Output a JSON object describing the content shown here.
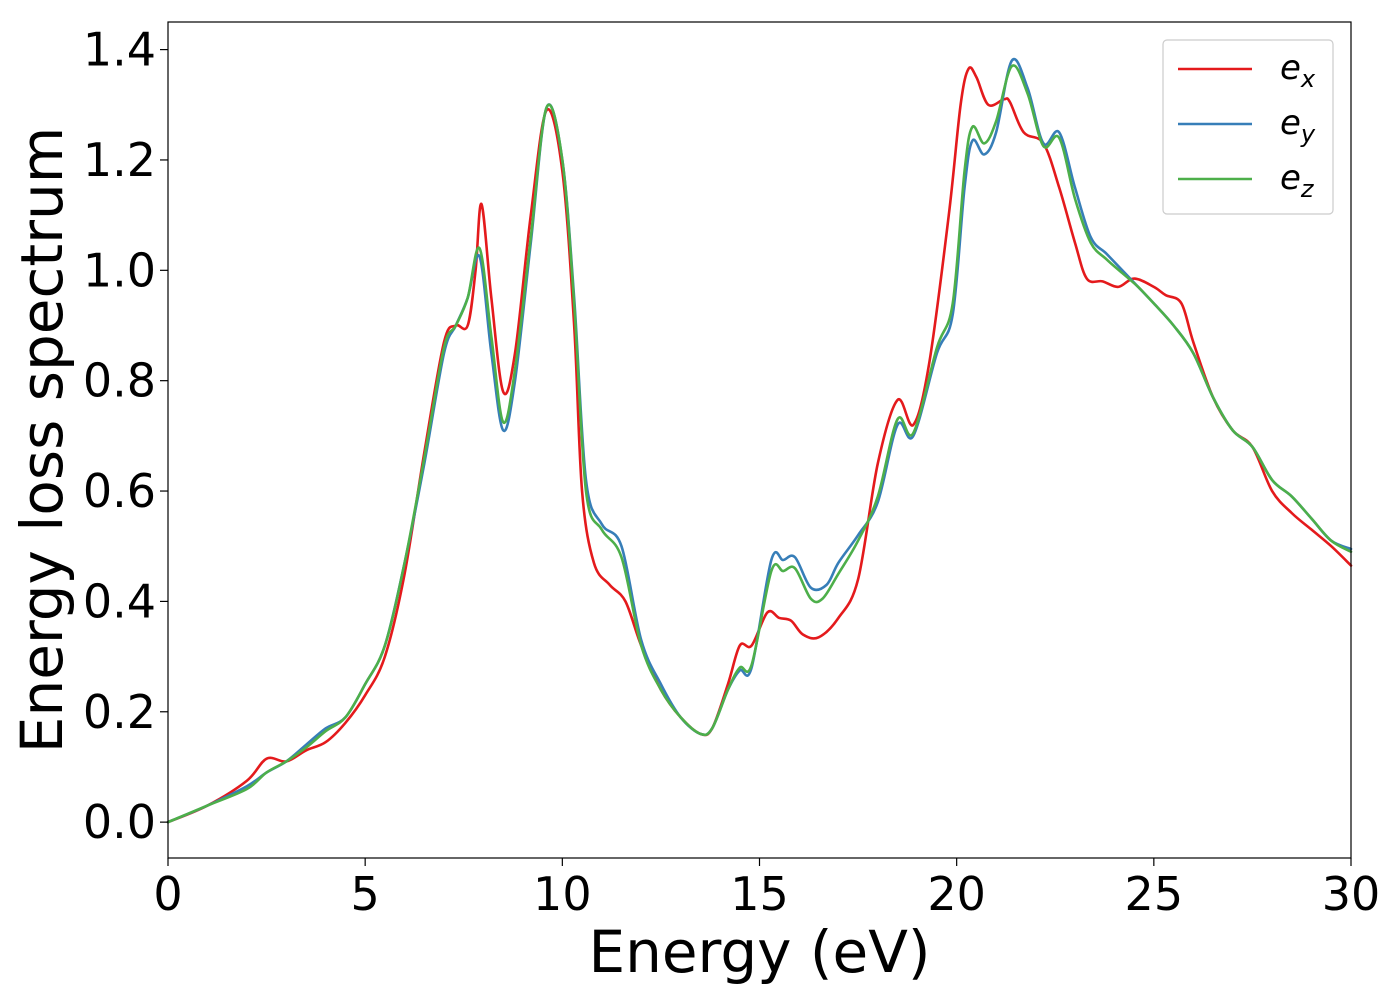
{
  "chart_data": {
    "type": "line",
    "title": "",
    "xlabel": "Energy (eV)",
    "ylabel": "Energy loss spectrum",
    "xlim": [
      0,
      30
    ],
    "ylim": [
      -0.065,
      1.45
    ],
    "xticks": [
      0,
      5,
      10,
      15,
      20,
      25,
      30
    ],
    "xtick_labels": [
      "0",
      "5",
      "10",
      "15",
      "20",
      "25",
      "30"
    ],
    "yticks": [
      0.0,
      0.2,
      0.4,
      0.6,
      0.8,
      1.0,
      1.2,
      1.4
    ],
    "ytick_labels": [
      "0.0",
      "0.2",
      "0.4",
      "0.6",
      "0.8",
      "1.0",
      "1.2",
      "1.4"
    ],
    "grid": false,
    "legend_position": "top-right",
    "series": [
      {
        "name": "e_x",
        "label_base": "e",
        "label_sub": "x",
        "color": "#e41a1c",
        "points": [
          [
            0,
            0
          ],
          [
            1,
            0.03
          ],
          [
            2,
            0.075
          ],
          [
            2.5,
            0.115
          ],
          [
            3,
            0.11
          ],
          [
            3.5,
            0.13
          ],
          [
            4,
            0.145
          ],
          [
            4.5,
            0.18
          ],
          [
            5,
            0.23
          ],
          [
            5.5,
            0.3
          ],
          [
            6,
            0.45
          ],
          [
            6.5,
            0.67
          ],
          [
            7,
            0.87
          ],
          [
            7.3,
            0.9
          ],
          [
            7.6,
            0.9
          ],
          [
            7.8,
            1.0
          ],
          [
            7.95,
            1.12
          ],
          [
            8.2,
            0.95
          ],
          [
            8.5,
            0.78
          ],
          [
            8.8,
            0.85
          ],
          [
            9.2,
            1.1
          ],
          [
            9.6,
            1.29
          ],
          [
            10,
            1.18
          ],
          [
            10.3,
            0.9
          ],
          [
            10.5,
            0.6
          ],
          [
            10.8,
            0.47
          ],
          [
            11.2,
            0.43
          ],
          [
            11.6,
            0.4
          ],
          [
            12,
            0.32
          ],
          [
            12.5,
            0.24
          ],
          [
            13,
            0.19
          ],
          [
            13.5,
            0.16
          ],
          [
            13.8,
            0.17
          ],
          [
            14.2,
            0.25
          ],
          [
            14.5,
            0.32
          ],
          [
            14.8,
            0.32
          ],
          [
            15.2,
            0.38
          ],
          [
            15.5,
            0.37
          ],
          [
            15.8,
            0.365
          ],
          [
            16.1,
            0.34
          ],
          [
            16.5,
            0.335
          ],
          [
            17,
            0.37
          ],
          [
            17.5,
            0.44
          ],
          [
            18,
            0.65
          ],
          [
            18.5,
            0.765
          ],
          [
            18.9,
            0.72
          ],
          [
            19.3,
            0.83
          ],
          [
            19.8,
            1.1
          ],
          [
            20.1,
            1.3
          ],
          [
            20.3,
            1.365
          ],
          [
            20.5,
            1.35
          ],
          [
            20.8,
            1.3
          ],
          [
            21.2,
            1.31
          ],
          [
            21.35,
            1.305
          ],
          [
            21.7,
            1.25
          ],
          [
            22.2,
            1.23
          ],
          [
            22.6,
            1.15
          ],
          [
            23,
            1.05
          ],
          [
            23.3,
            0.985
          ],
          [
            23.7,
            0.98
          ],
          [
            24.1,
            0.97
          ],
          [
            24.5,
            0.985
          ],
          [
            25,
            0.97
          ],
          [
            25.3,
            0.955
          ],
          [
            25.7,
            0.94
          ],
          [
            26,
            0.87
          ],
          [
            26.5,
            0.77
          ],
          [
            27,
            0.71
          ],
          [
            27.5,
            0.68
          ],
          [
            28,
            0.6
          ],
          [
            28.5,
            0.56
          ],
          [
            29,
            0.53
          ],
          [
            29.5,
            0.5
          ],
          [
            30,
            0.465
          ]
        ]
      },
      {
        "name": "e_y",
        "label_base": "e",
        "label_sub": "y",
        "color": "#377eb8",
        "points": [
          [
            0,
            0
          ],
          [
            1,
            0.03
          ],
          [
            2,
            0.065
          ],
          [
            2.5,
            0.09
          ],
          [
            3,
            0.11
          ],
          [
            3.5,
            0.14
          ],
          [
            4,
            0.17
          ],
          [
            4.5,
            0.19
          ],
          [
            5,
            0.25
          ],
          [
            5.5,
            0.32
          ],
          [
            6,
            0.47
          ],
          [
            6.5,
            0.65
          ],
          [
            7,
            0.85
          ],
          [
            7.3,
            0.9
          ],
          [
            7.6,
            0.95
          ],
          [
            7.9,
            1.025
          ],
          [
            8.2,
            0.85
          ],
          [
            8.5,
            0.71
          ],
          [
            8.8,
            0.8
          ],
          [
            9.2,
            1.05
          ],
          [
            9.6,
            1.295
          ],
          [
            10,
            1.2
          ],
          [
            10.3,
            0.95
          ],
          [
            10.6,
            0.62
          ],
          [
            11,
            0.54
          ],
          [
            11.5,
            0.5
          ],
          [
            12,
            0.33
          ],
          [
            12.5,
            0.25
          ],
          [
            13,
            0.19
          ],
          [
            13.5,
            0.16
          ],
          [
            13.8,
            0.17
          ],
          [
            14.2,
            0.24
          ],
          [
            14.5,
            0.275
          ],
          [
            14.8,
            0.28
          ],
          [
            15.3,
            0.475
          ],
          [
            15.6,
            0.475
          ],
          [
            15.9,
            0.48
          ],
          [
            16.3,
            0.425
          ],
          [
            16.7,
            0.43
          ],
          [
            17,
            0.47
          ],
          [
            17.5,
            0.52
          ],
          [
            18,
            0.58
          ],
          [
            18.5,
            0.72
          ],
          [
            18.9,
            0.7
          ],
          [
            19.5,
            0.85
          ],
          [
            19.9,
            0.92
          ],
          [
            20.2,
            1.15
          ],
          [
            20.4,
            1.235
          ],
          [
            20.7,
            1.21
          ],
          [
            21,
            1.25
          ],
          [
            21.4,
            1.38
          ],
          [
            21.8,
            1.33
          ],
          [
            22.2,
            1.23
          ],
          [
            22.6,
            1.25
          ],
          [
            23,
            1.15
          ],
          [
            23.4,
            1.06
          ],
          [
            23.8,
            1.03
          ],
          [
            24.2,
            1.0
          ],
          [
            24.6,
            0.97
          ],
          [
            25,
            0.94
          ],
          [
            25.5,
            0.9
          ],
          [
            26,
            0.85
          ],
          [
            26.5,
            0.77
          ],
          [
            27,
            0.71
          ],
          [
            27.5,
            0.68
          ],
          [
            28,
            0.62
          ],
          [
            28.5,
            0.59
          ],
          [
            29,
            0.55
          ],
          [
            29.5,
            0.51
          ],
          [
            30,
            0.495
          ]
        ]
      },
      {
        "name": "e_z",
        "label_base": "e",
        "label_sub": "z",
        "color": "#4daf4a",
        "points": [
          [
            0,
            0
          ],
          [
            1,
            0.03
          ],
          [
            2,
            0.06
          ],
          [
            2.5,
            0.09
          ],
          [
            3,
            0.11
          ],
          [
            3.5,
            0.135
          ],
          [
            4,
            0.165
          ],
          [
            4.5,
            0.19
          ],
          [
            5,
            0.25
          ],
          [
            5.5,
            0.32
          ],
          [
            6,
            0.47
          ],
          [
            6.5,
            0.66
          ],
          [
            7,
            0.86
          ],
          [
            7.3,
            0.9
          ],
          [
            7.6,
            0.95
          ],
          [
            7.9,
            1.04
          ],
          [
            8.2,
            0.88
          ],
          [
            8.5,
            0.725
          ],
          [
            8.8,
            0.82
          ],
          [
            9.2,
            1.06
          ],
          [
            9.6,
            1.295
          ],
          [
            10,
            1.2
          ],
          [
            10.3,
            0.94
          ],
          [
            10.6,
            0.6
          ],
          [
            11,
            0.53
          ],
          [
            11.5,
            0.48
          ],
          [
            12,
            0.32
          ],
          [
            12.5,
            0.24
          ],
          [
            13,
            0.19
          ],
          [
            13.5,
            0.16
          ],
          [
            13.8,
            0.17
          ],
          [
            14.2,
            0.24
          ],
          [
            14.5,
            0.28
          ],
          [
            14.8,
            0.285
          ],
          [
            15.3,
            0.455
          ],
          [
            15.6,
            0.455
          ],
          [
            15.9,
            0.46
          ],
          [
            16.3,
            0.405
          ],
          [
            16.6,
            0.405
          ],
          [
            17,
            0.45
          ],
          [
            17.5,
            0.51
          ],
          [
            18,
            0.59
          ],
          [
            18.5,
            0.73
          ],
          [
            18.9,
            0.705
          ],
          [
            19.5,
            0.86
          ],
          [
            19.9,
            0.94
          ],
          [
            20.2,
            1.18
          ],
          [
            20.4,
            1.26
          ],
          [
            20.7,
            1.23
          ],
          [
            21,
            1.27
          ],
          [
            21.4,
            1.37
          ],
          [
            21.8,
            1.32
          ],
          [
            22.2,
            1.225
          ],
          [
            22.6,
            1.24
          ],
          [
            23,
            1.13
          ],
          [
            23.4,
            1.05
          ],
          [
            23.8,
            1.02
          ],
          [
            24.2,
            0.995
          ],
          [
            24.6,
            0.97
          ],
          [
            25,
            0.94
          ],
          [
            25.5,
            0.9
          ],
          [
            26,
            0.85
          ],
          [
            26.5,
            0.77
          ],
          [
            27,
            0.71
          ],
          [
            27.5,
            0.68
          ],
          [
            28,
            0.62
          ],
          [
            28.5,
            0.59
          ],
          [
            29,
            0.55
          ],
          [
            29.5,
            0.51
          ],
          [
            30,
            0.49
          ]
        ]
      }
    ]
  }
}
